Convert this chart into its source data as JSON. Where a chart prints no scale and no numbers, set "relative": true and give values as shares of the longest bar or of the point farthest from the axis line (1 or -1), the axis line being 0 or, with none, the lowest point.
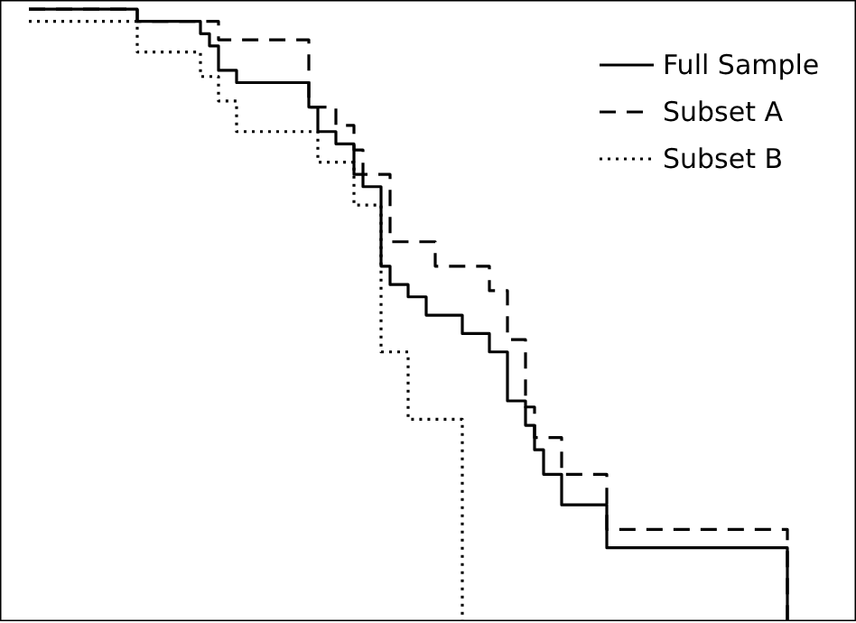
{
  "chart_data": {
    "type": "step",
    "relative": true,
    "legend": "top right",
    "categories": [
      null,
      null,
      null,
      null,
      null,
      null,
      null,
      null,
      null,
      null,
      null,
      null,
      null,
      null,
      null,
      null,
      null,
      null,
      null,
      null,
      null,
      null,
      null,
      null,
      null,
      null,
      null,
      null,
      null,
      null,
      null,
      null,
      null,
      null,
      null,
      null,
      null,
      null,
      null,
      null,
      null,
      null,
      null,
      null,
      null,
      null,
      null,
      null,
      null,
      null,
      null,
      null,
      null,
      null,
      null,
      null,
      null,
      null,
      null,
      null,
      null,
      null,
      null,
      null,
      null,
      null,
      null,
      null,
      null,
      null,
      null,
      null,
      null,
      null,
      null,
      null,
      null,
      null,
      null,
      null,
      null,
      null,
      null,
      null,
      null
    ],
    "series": [
      {
        "name": "Full Sample",
        "color": "#000000",
        "line_style": "solid",
        "values": [
          1,
          1,
          1,
          1,
          1,
          1,
          1,
          1,
          1,
          1,
          1,
          1,
          0.98,
          0.98,
          0.98,
          0.98,
          0.98,
          0.98,
          0.98,
          0.96,
          0.94,
          0.9,
          0.9,
          0.88,
          0.88,
          0.88,
          0.88,
          0.88,
          0.88,
          0.88,
          0.88,
          0.84,
          0.8,
          0.8,
          0.78,
          0.78,
          0.73,
          0.71,
          0.71,
          0.58,
          0.55,
          0.55,
          0.53,
          0.53,
          0.5,
          0.5,
          0.5,
          0.5,
          0.47,
          0.47,
          0.47,
          0.44,
          0.44,
          0.36,
          0.36,
          0.32,
          0.28,
          0.24,
          0.24,
          0.19,
          0.19,
          0.19,
          0.19,
          0.19,
          0.12,
          0.12,
          0.12,
          0.12,
          0.12,
          0.12,
          0.12,
          0.12,
          0.12,
          0.12,
          0.12,
          0.12,
          0.12,
          0.12,
          0.12,
          0.12,
          0.12,
          0.12,
          0.12,
          0.12,
          0
        ]
      },
      {
        "name": "Subset A",
        "color": "#000000",
        "line_style": "dashed",
        "values": [
          1,
          1,
          1,
          1,
          1,
          1,
          1,
          1,
          1,
          1,
          1,
          1,
          0.98,
          0.98,
          0.98,
          0.98,
          0.98,
          0.98,
          0.98,
          0.98,
          0.98,
          0.95,
          0.95,
          0.95,
          0.95,
          0.95,
          0.95,
          0.95,
          0.95,
          0.95,
          0.95,
          0.84,
          0.84,
          0.84,
          0.81,
          0.81,
          0.77,
          0.73,
          0.73,
          0.73,
          0.62,
          0.62,
          0.62,
          0.62,
          0.62,
          0.58,
          0.58,
          0.58,
          0.58,
          0.58,
          0.58,
          0.54,
          0.54,
          0.46,
          0.46,
          0.35,
          0.3,
          0.3,
          0.3,
          0.24,
          0.24,
          0.24,
          0.24,
          0.24,
          0.15,
          0.15,
          0.15,
          0.15,
          0.15,
          0.15,
          0.15,
          0.15,
          0.15,
          0.15,
          0.15,
          0.15,
          0.15,
          0.15,
          0.15,
          0.15,
          0.15,
          0.15,
          0.15,
          0.15,
          0
        ]
      },
      {
        "name": "Subset B",
        "color": "#000000",
        "line_style": "dotted",
        "values": [
          0.98,
          0.98,
          0.98,
          0.98,
          0.98,
          0.98,
          0.98,
          0.98,
          0.98,
          0.98,
          0.98,
          0.98,
          0.93,
          0.93,
          0.93,
          0.93,
          0.93,
          0.93,
          0.93,
          0.89,
          0.89,
          0.85,
          0.85,
          0.8,
          0.8,
          0.8,
          0.8,
          0.8,
          0.8,
          0.8,
          0.8,
          0.8,
          0.75,
          0.75,
          0.75,
          0.75,
          0.68,
          0.68,
          0.68,
          0.44,
          0.44,
          0.44,
          0.33,
          0.33,
          0.33,
          0.33,
          0.33,
          0.33,
          0,
          null,
          null,
          null,
          null,
          null,
          null,
          null,
          null,
          null,
          null,
          null,
          null,
          null,
          null,
          null,
          null,
          null,
          null,
          null,
          null,
          null,
          null,
          null,
          null,
          null,
          null,
          null,
          null,
          null,
          null,
          null,
          null,
          null,
          null,
          null,
          null
        ]
      }
    ]
  }
}
